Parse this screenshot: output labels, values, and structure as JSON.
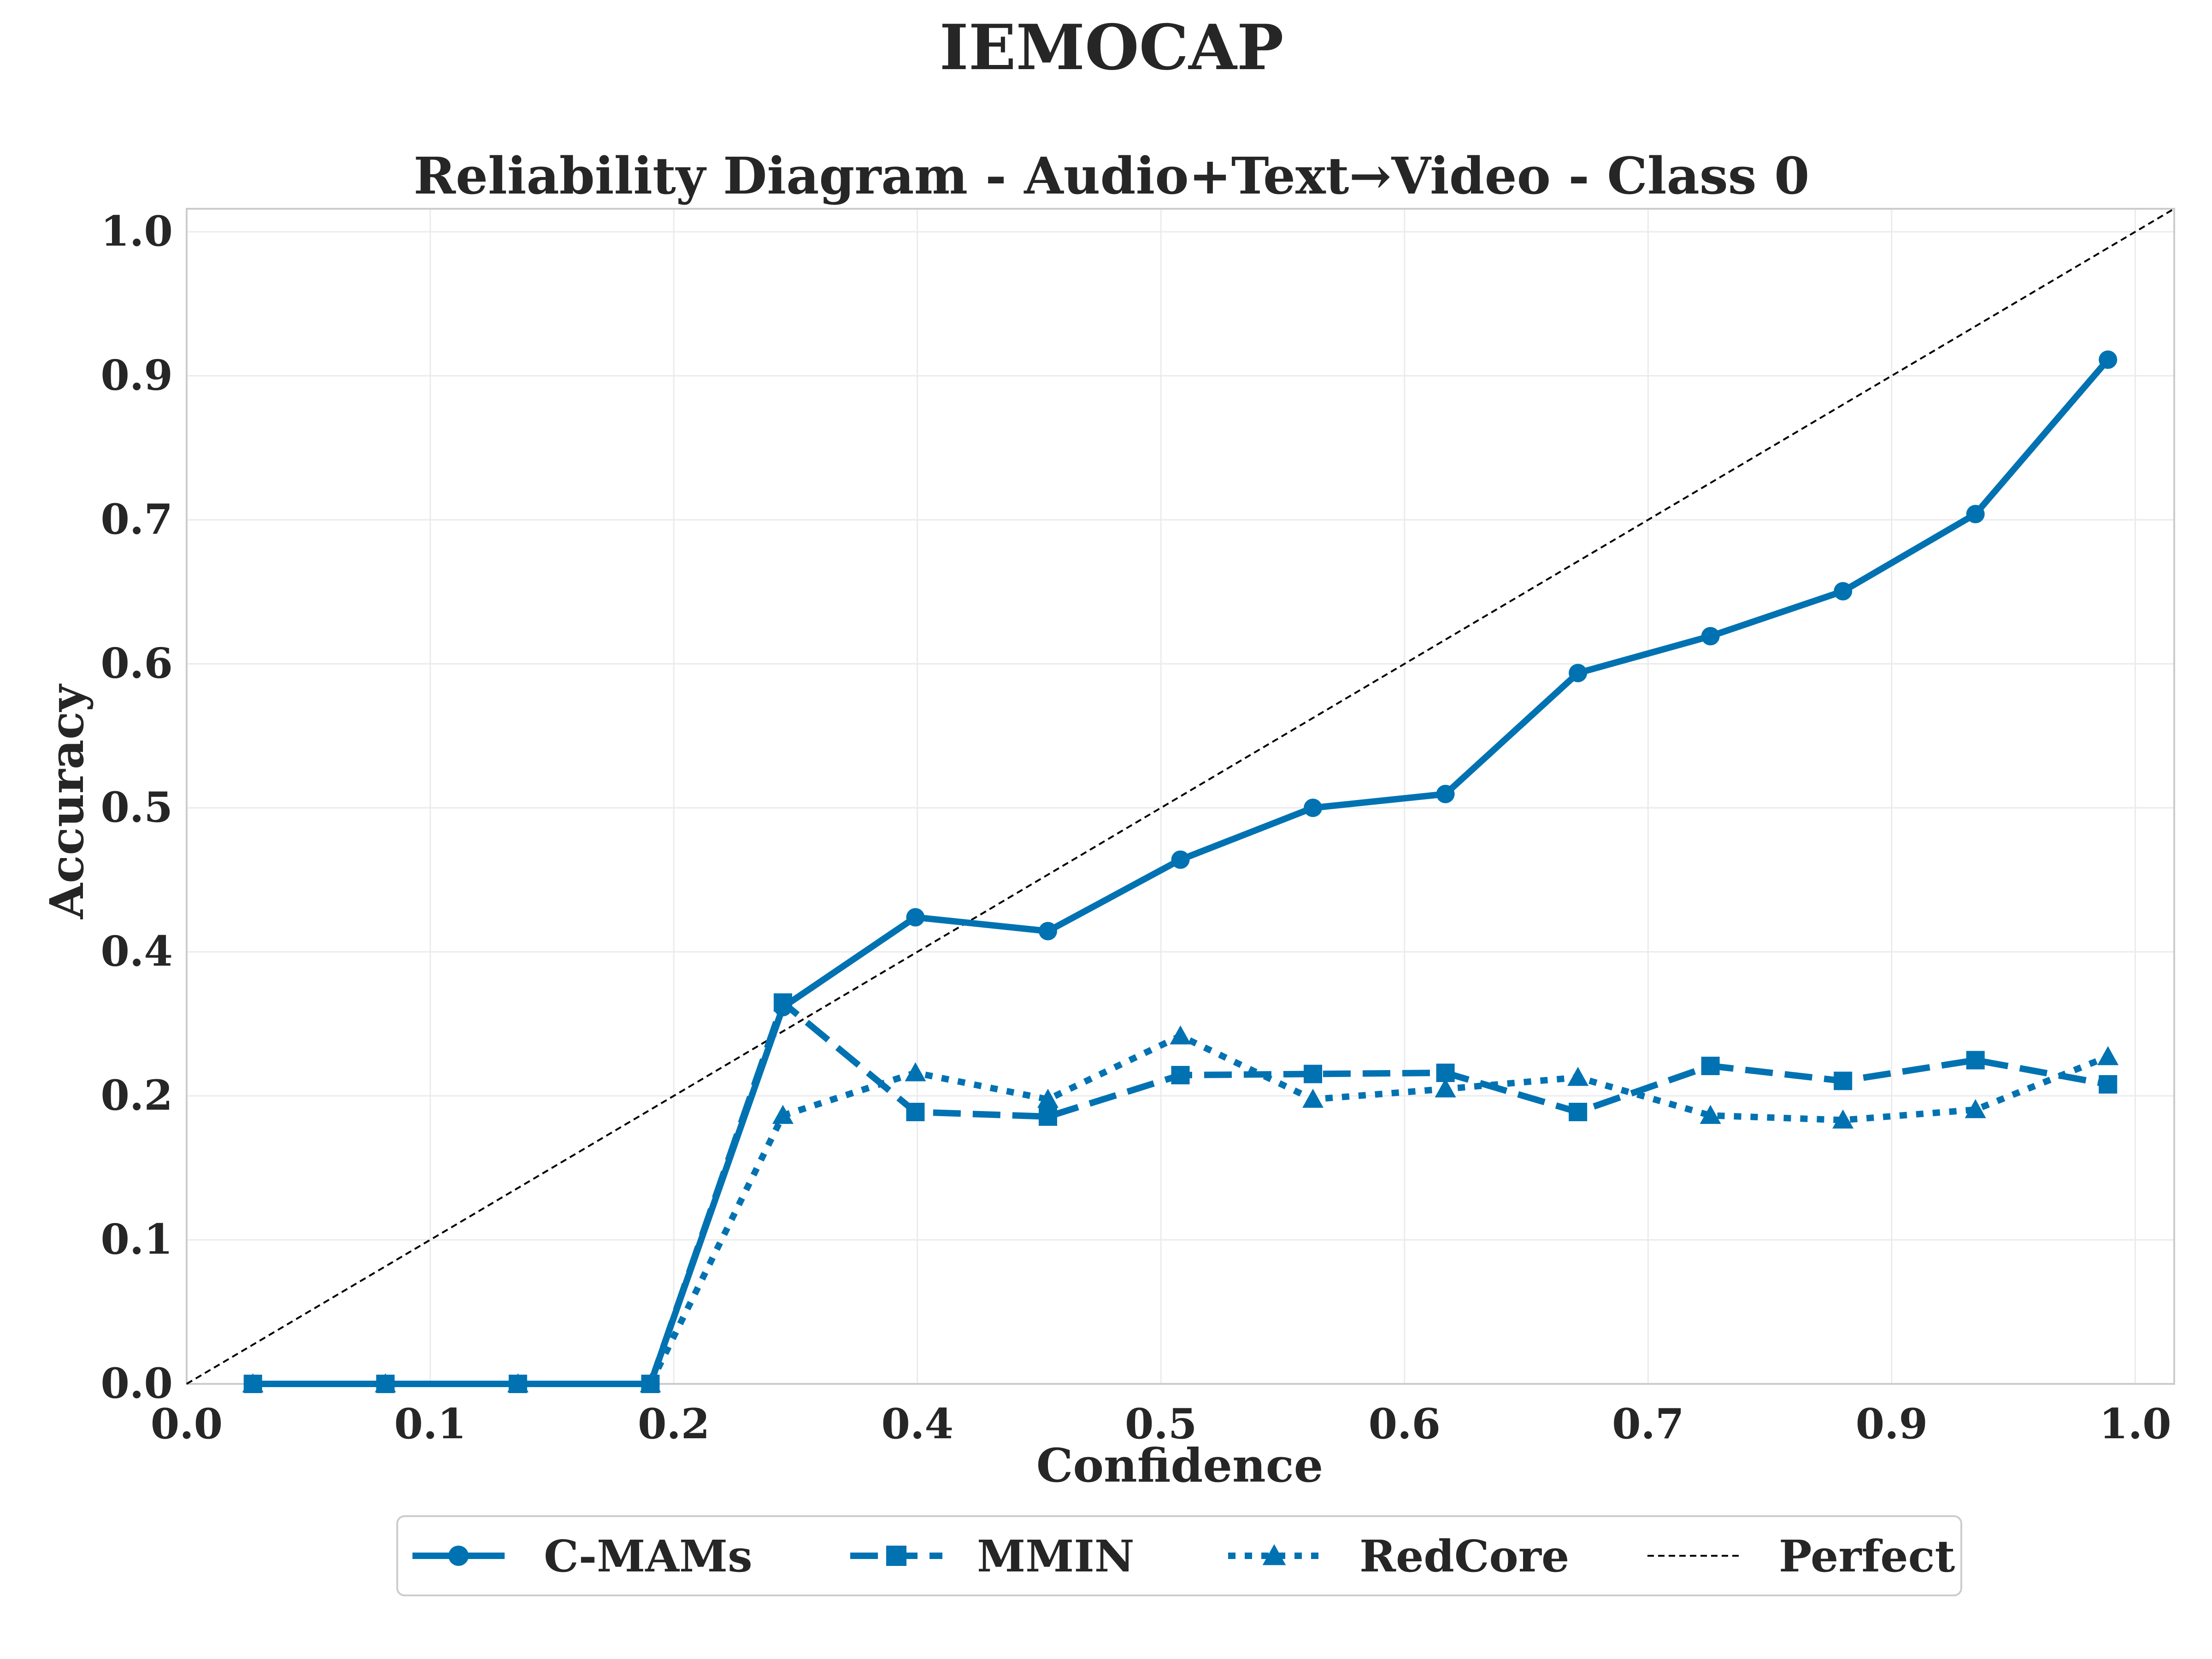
{
  "chart_data": {
    "type": "line",
    "suptitle": "IEMOCAP",
    "title": "Reliability Diagram - Audio+Text→Video - Class 0",
    "xlabel": "Confidence",
    "ylabel": "Accuracy",
    "xlim": [
      0.0,
      1.02
    ],
    "ylim": [
      0.0,
      1.02
    ],
    "xticks": [
      {
        "pos": 0.0,
        "label": "0.0"
      },
      {
        "pos": 0.125,
        "label": "0.1"
      },
      {
        "pos": 0.25,
        "label": "0.2"
      },
      {
        "pos": 0.375,
        "label": "0.4"
      },
      {
        "pos": 0.5,
        "label": "0.5"
      },
      {
        "pos": 0.625,
        "label": "0.6"
      },
      {
        "pos": 0.75,
        "label": "0.7"
      },
      {
        "pos": 0.875,
        "label": "0.9"
      },
      {
        "pos": 1.0,
        "label": "1.0"
      }
    ],
    "yticks": [
      {
        "pos": 0.0,
        "label": "0.0"
      },
      {
        "pos": 0.125,
        "label": "0.1"
      },
      {
        "pos": 0.25,
        "label": "0.2"
      },
      {
        "pos": 0.375,
        "label": "0.4"
      },
      {
        "pos": 0.5,
        "label": "0.5"
      },
      {
        "pos": 0.625,
        "label": "0.6"
      },
      {
        "pos": 0.75,
        "label": "0.7"
      },
      {
        "pos": 0.875,
        "label": "0.9"
      },
      {
        "pos": 1.0,
        "label": "1.0"
      }
    ],
    "grid": true,
    "legend_position": "bottom-center",
    "color": "#0072b2",
    "series": [
      {
        "name": "C-MAMs",
        "style": "solid",
        "marker": "circle",
        "x": [
          0.034,
          0.102,
          0.17,
          0.238,
          0.306,
          0.374,
          0.442,
          0.51,
          0.578,
          0.646,
          0.714,
          0.782,
          0.85,
          0.918,
          0.986
        ],
        "y": [
          0.0,
          0.0,
          0.0,
          0.0,
          0.327,
          0.405,
          0.393,
          0.455,
          0.5,
          0.512,
          0.617,
          0.649,
          0.688,
          0.755,
          0.889
        ]
      },
      {
        "name": "MMIN",
        "style": "dashed",
        "marker": "square",
        "x": [
          0.034,
          0.102,
          0.17,
          0.238,
          0.306,
          0.374,
          0.442,
          0.51,
          0.578,
          0.646,
          0.714,
          0.782,
          0.85,
          0.918,
          0.986
        ],
        "y": [
          0.0,
          0.0,
          0.0,
          0.0,
          0.331,
          0.236,
          0.232,
          0.268,
          0.269,
          0.27,
          0.236,
          0.276,
          0.263,
          0.281,
          0.26
        ]
      },
      {
        "name": "RedCore",
        "style": "dotted",
        "marker": "triangle",
        "x": [
          0.034,
          0.102,
          0.17,
          0.238,
          0.306,
          0.374,
          0.442,
          0.51,
          0.578,
          0.646,
          0.714,
          0.782,
          0.85,
          0.918,
          0.986
        ],
        "y": [
          0.0,
          0.0,
          0.0,
          0.0,
          0.233,
          0.27,
          0.247,
          0.302,
          0.247,
          0.256,
          0.266,
          0.233,
          0.229,
          0.238,
          0.284
        ]
      },
      {
        "name": "Perfect",
        "style": "thin-dashed",
        "color": "#000000",
        "x": [
          0.0,
          1.02
        ],
        "y": [
          0.0,
          1.02
        ]
      }
    ]
  }
}
